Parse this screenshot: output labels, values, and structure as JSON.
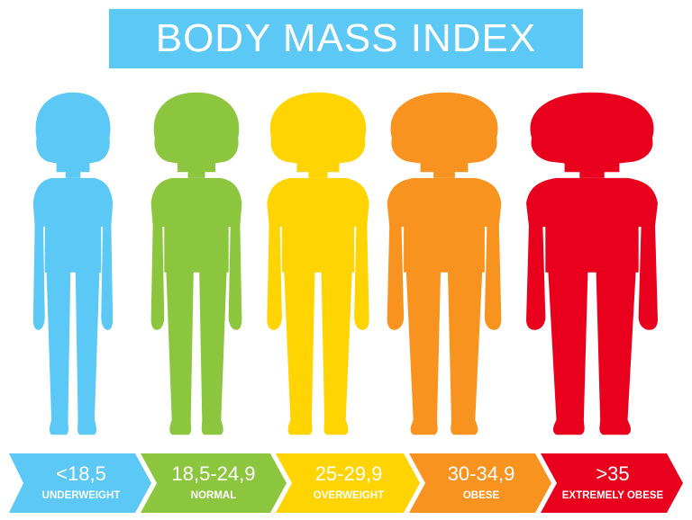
{
  "title": "BODY MASS INDEX",
  "colors": {
    "banner": "#5bc8f5",
    "underweight": "#5bc8f5",
    "normal": "#8cc63f",
    "overweight": "#ffd400",
    "obese": "#f7931e",
    "extremely_obese": "#e8001c"
  },
  "categories": [
    {
      "range": "<18,5",
      "label": "UNDERWEIGHT",
      "color": "#5bc8f5"
    },
    {
      "range": "18,5-24,9",
      "label": "NORMAL",
      "color": "#8cc63f"
    },
    {
      "range": "25-29,9",
      "label": "OVERWEIGHT",
      "color": "#ffd400"
    },
    {
      "range": "30-34,9",
      "label": "OBESE",
      "color": "#f7931e"
    },
    {
      "range": ">35",
      "label": "EXTREMELY OBESE",
      "color": "#e8001c"
    }
  ]
}
